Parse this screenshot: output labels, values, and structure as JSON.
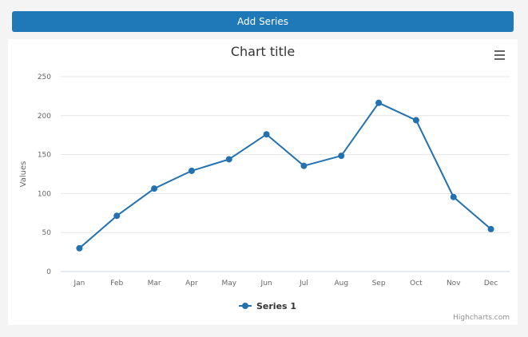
{
  "toolbar": {
    "add_series_label": "Add Series"
  },
  "menu": {
    "icon": "hamburger-menu-icon"
  },
  "credits": "Highcharts.com",
  "colors": {
    "series": "#2271b1",
    "button": "#1f78b8",
    "grid": "#e6e6e6",
    "axis_text": "#666666"
  },
  "chart_data": {
    "type": "line",
    "title": "Chart title",
    "xlabel": "",
    "ylabel": "Values",
    "categories": [
      "Jan",
      "Feb",
      "Mar",
      "Apr",
      "May",
      "Jun",
      "Jul",
      "Aug",
      "Sep",
      "Oct",
      "Nov",
      "Dec"
    ],
    "ylim": [
      0,
      250
    ],
    "yticks": [
      0,
      50,
      100,
      150,
      200,
      250
    ],
    "grid": true,
    "legend": "bottom-center",
    "series": [
      {
        "name": "Series 1",
        "values": [
          29.9,
          71.5,
          106.4,
          129.2,
          144.0,
          176.0,
          135.6,
          148.5,
          216.4,
          194.1,
          95.6,
          54.4
        ]
      }
    ]
  }
}
